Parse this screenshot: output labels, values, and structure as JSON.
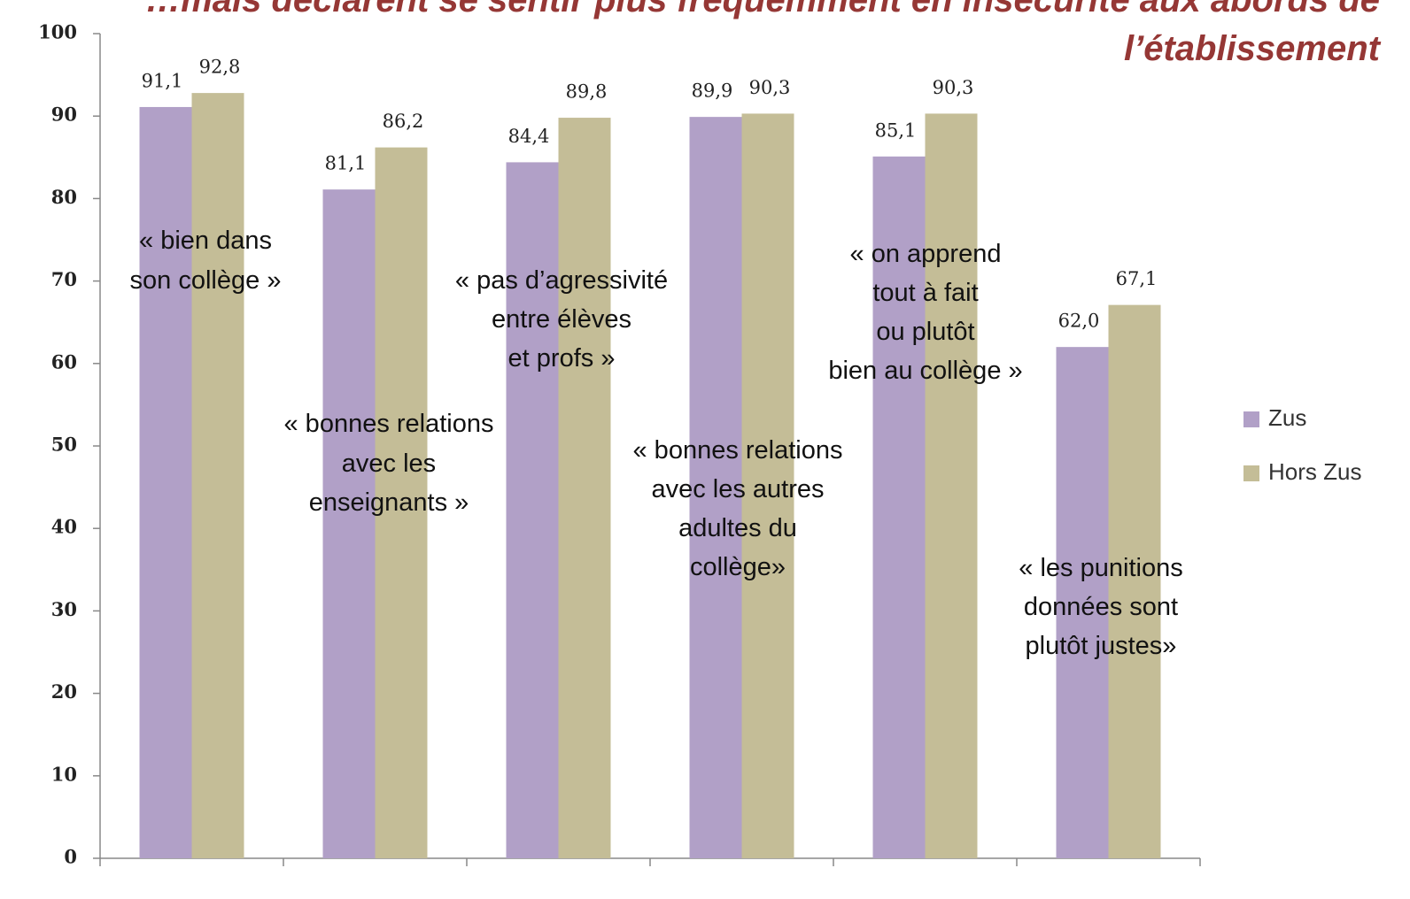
{
  "chart_data": {
    "type": "bar",
    "title": [
      "…mais déclarent se sentir plus fréquemment en insécurité aux abords de",
      "l’établissement"
    ],
    "categories": [
      [
        "« bien dans",
        "son collège  »"
      ],
      [
        "« bonnes relations",
        "avec les",
        "enseignants  »"
      ],
      [
        "« pas d’agressivité",
        "entre élèves",
        "et profs »"
      ],
      [
        "« bonnes relations",
        "avec les autres",
        "adultes du",
        "collège»"
      ],
      [
        "« on apprend",
        "tout à fait",
        "ou plutôt",
        "bien au collège »"
      ],
      [
        "« les punitions",
        "données sont",
        "plutôt justes»"
      ]
    ],
    "series": [
      {
        "name": "Zus",
        "color": "#b1a0c7",
        "values": [
          91.1,
          81.1,
          84.4,
          89.9,
          85.1,
          62.0
        ],
        "value_labels": [
          "91,1",
          "81,1",
          "84,4",
          "89,9",
          "85,1",
          "62,0"
        ]
      },
      {
        "name": "Hors Zus",
        "color": "#c4bd97",
        "values": [
          92.8,
          86.2,
          89.8,
          90.3,
          90.3,
          67.1
        ],
        "value_labels": [
          "92,8",
          "86,2",
          "89,8",
          "90,3",
          "90,3",
          "67,1"
        ]
      }
    ],
    "ylim": [
      0,
      100
    ],
    "yticks": [
      0,
      10,
      20,
      30,
      40,
      50,
      60,
      70,
      80,
      90,
      100
    ],
    "legend": "right"
  }
}
